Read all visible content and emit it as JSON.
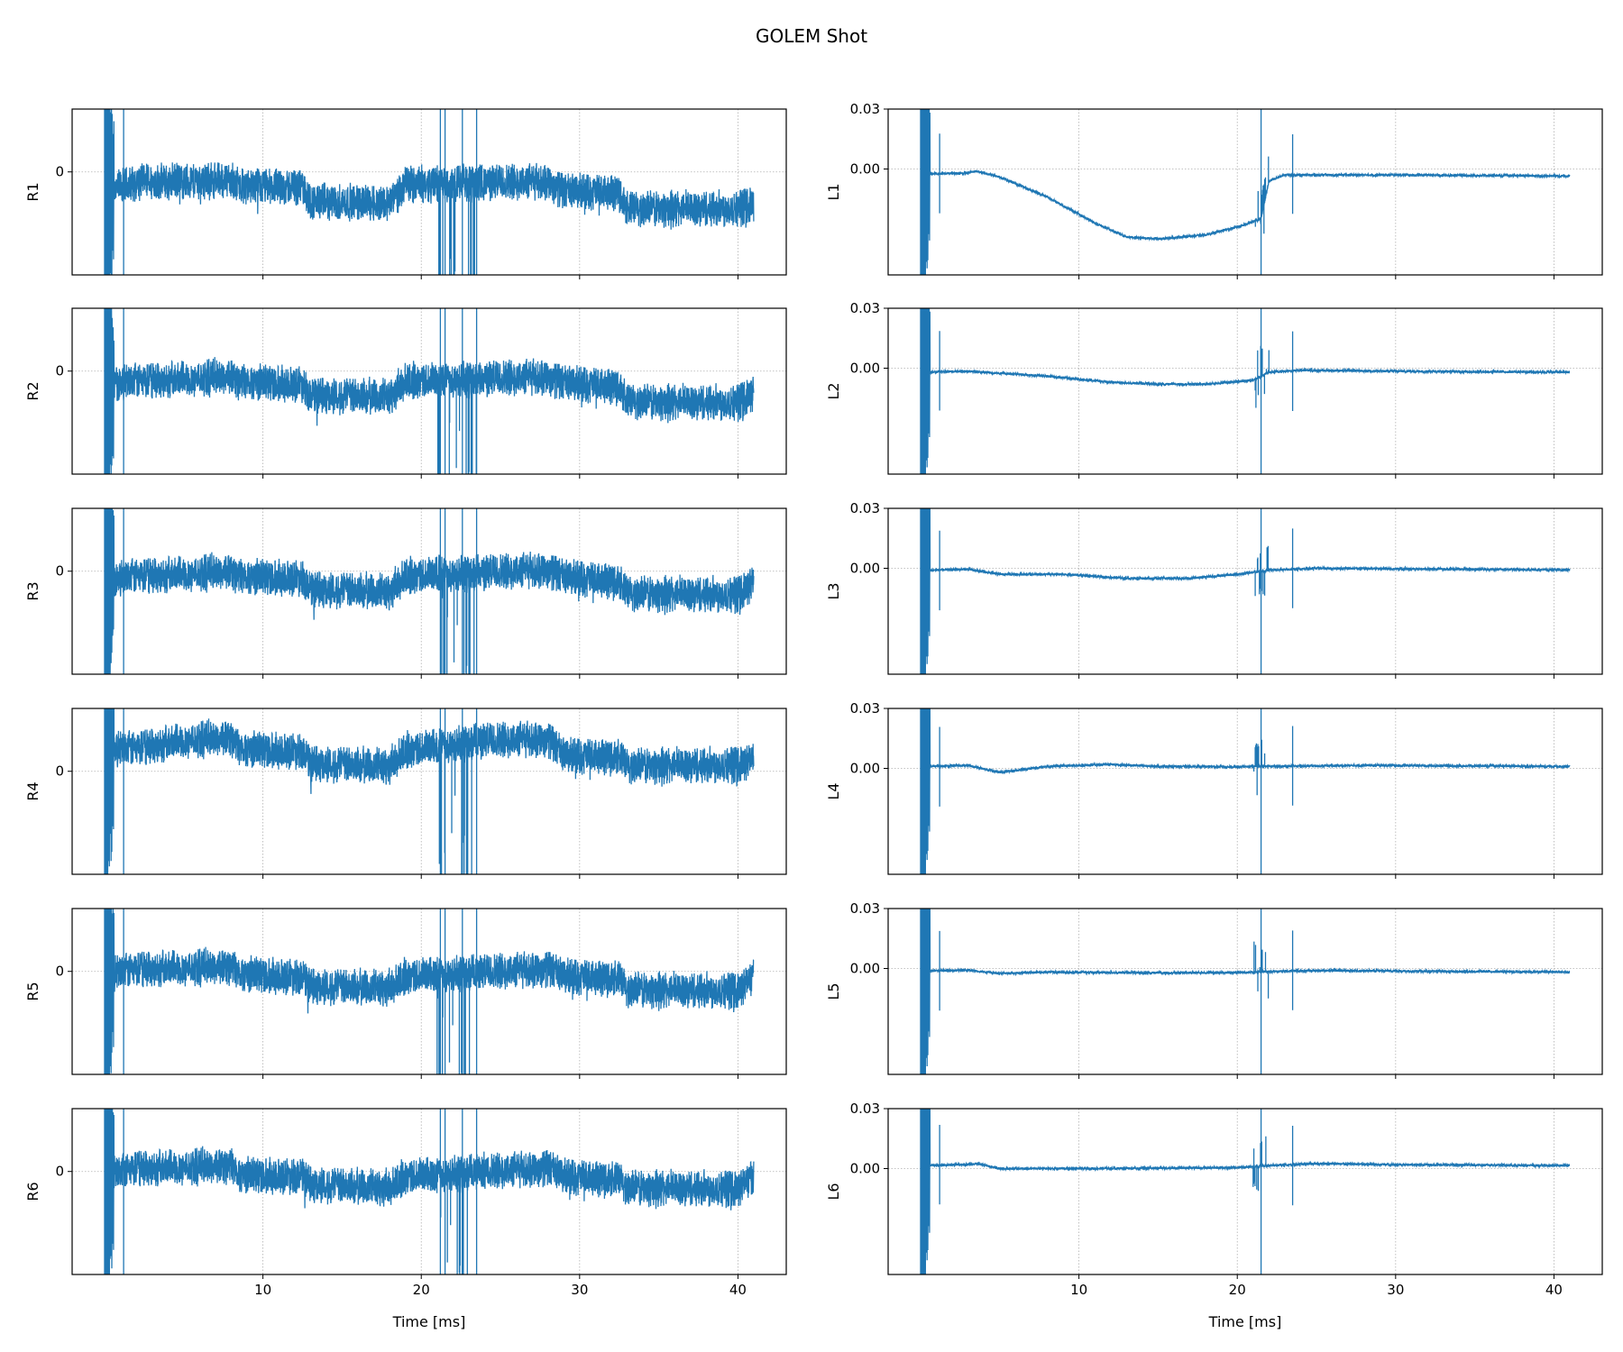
{
  "chart_data": {
    "type": "line",
    "title": "GOLEM Shot",
    "xlabel": "Time [ms]",
    "xlim": [
      -2.05,
      43.05
    ],
    "xticks": [
      10,
      20,
      30,
      40
    ],
    "grid": true,
    "line_color": "#1f77b4",
    "left_column": {
      "ylim": [
        -1.0,
        0.61
      ],
      "yticks": [
        {
          "value": 0,
          "label": "0"
        }
      ],
      "noise": 0.2,
      "spikes": [
        0.0,
        1.2,
        21.2,
        21.5,
        22.6,
        23.5
      ],
      "series": [
        {
          "name": "R1",
          "trend": [
            [
              0,
              -0.2
            ],
            [
              2,
              -0.1
            ],
            [
              8,
              -0.08
            ],
            [
              8.5,
              -0.14
            ],
            [
              12.5,
              -0.15
            ],
            [
              13,
              -0.29
            ],
            [
              18,
              -0.3
            ],
            [
              19,
              -0.12
            ],
            [
              28,
              -0.09
            ],
            [
              29,
              -0.19
            ],
            [
              32.5,
              -0.2
            ],
            [
              33,
              -0.36
            ],
            [
              40,
              -0.35
            ],
            [
              41,
              -0.3
            ]
          ]
        },
        {
          "name": "R2",
          "trend": [
            [
              0,
              -0.15
            ],
            [
              2,
              -0.1
            ],
            [
              8,
              -0.05
            ],
            [
              8.5,
              -0.1
            ],
            [
              12.5,
              -0.12
            ],
            [
              13,
              -0.24
            ],
            [
              18,
              -0.25
            ],
            [
              19,
              -0.1
            ],
            [
              28,
              -0.05
            ],
            [
              29,
              -0.12
            ],
            [
              32.5,
              -0.15
            ],
            [
              33,
              -0.3
            ],
            [
              40,
              -0.3
            ],
            [
              41,
              -0.2
            ]
          ]
        },
        {
          "name": "R3",
          "trend": [
            [
              0,
              -0.1
            ],
            [
              2,
              -0.05
            ],
            [
              8,
              0.0
            ],
            [
              8.5,
              -0.05
            ],
            [
              12.5,
              -0.06
            ],
            [
              13,
              -0.18
            ],
            [
              18,
              -0.2
            ],
            [
              19,
              -0.05
            ],
            [
              28,
              0.02
            ],
            [
              29,
              -0.06
            ],
            [
              32.5,
              -0.1
            ],
            [
              33,
              -0.22
            ],
            [
              40,
              -0.22
            ],
            [
              41,
              -0.1
            ]
          ]
        },
        {
          "name": "R4",
          "trend": [
            [
              0,
              0.2
            ],
            [
              2,
              0.22
            ],
            [
              5,
              0.3
            ],
            [
              8,
              0.33
            ],
            [
              8.5,
              0.22
            ],
            [
              12.5,
              0.2
            ],
            [
              13,
              0.07
            ],
            [
              18,
              0.05
            ],
            [
              19,
              0.2
            ],
            [
              24,
              0.3
            ],
            [
              28,
              0.32
            ],
            [
              29,
              0.15
            ],
            [
              32.5,
              0.14
            ],
            [
              33,
              0.05
            ],
            [
              40,
              0.07
            ],
            [
              41,
              0.12
            ]
          ]
        },
        {
          "name": "R5",
          "trend": [
            [
              0,
              -0.05
            ],
            [
              2,
              0.02
            ],
            [
              8,
              0.05
            ],
            [
              8.5,
              -0.02
            ],
            [
              12.5,
              -0.05
            ],
            [
              13,
              -0.15
            ],
            [
              18,
              -0.16
            ],
            [
              19,
              -0.05
            ],
            [
              28,
              0.03
            ],
            [
              29,
              -0.05
            ],
            [
              32.5,
              -0.07
            ],
            [
              33,
              -0.18
            ],
            [
              40,
              -0.18
            ],
            [
              41,
              -0.05
            ]
          ]
        },
        {
          "name": "R6",
          "trend": [
            [
              0,
              -0.05
            ],
            [
              2,
              0.03
            ],
            [
              8,
              0.06
            ],
            [
              8.5,
              -0.03
            ],
            [
              12.5,
              -0.04
            ],
            [
              13,
              -0.13
            ],
            [
              18,
              -0.16
            ],
            [
              19,
              -0.05
            ],
            [
              28,
              0.04
            ],
            [
              29,
              -0.05
            ],
            [
              32.5,
              -0.08
            ],
            [
              33,
              -0.16
            ],
            [
              40,
              -0.16
            ],
            [
              41,
              -0.05
            ]
          ]
        }
      ]
    },
    "right_column": {
      "ylim": [
        -0.053,
        0.03
      ],
      "yticks": [
        {
          "value": 0.03,
          "label": "0.03"
        },
        {
          "value": 0.0,
          "label": "0.00"
        }
      ],
      "noise": 0.0006,
      "spikes": [
        0.0,
        1.2,
        21.5,
        23.5
      ],
      "series": [
        {
          "name": "L1",
          "trend": [
            [
              0.3,
              -0.0025
            ],
            [
              3,
              -0.002
            ],
            [
              3.5,
              -0.001
            ],
            [
              5,
              -0.004
            ],
            [
              8,
              -0.014
            ],
            [
              11,
              -0.027
            ],
            [
              13,
              -0.034
            ],
            [
              15,
              -0.035
            ],
            [
              18,
              -0.033
            ],
            [
              20,
              -0.029
            ],
            [
              21.5,
              -0.025
            ],
            [
              22,
              -0.006
            ],
            [
              23,
              -0.003
            ],
            [
              30,
              -0.003
            ],
            [
              41,
              -0.0035
            ]
          ]
        },
        {
          "name": "L2",
          "trend": [
            [
              0.3,
              -0.002
            ],
            [
              3,
              -0.0015
            ],
            [
              5,
              -0.0025
            ],
            [
              8,
              -0.004
            ],
            [
              12,
              -0.007
            ],
            [
              15,
              -0.008
            ],
            [
              18,
              -0.008
            ],
            [
              21,
              -0.006
            ],
            [
              22,
              -0.002
            ],
            [
              24,
              -0.001
            ],
            [
              30,
              -0.0015
            ],
            [
              41,
              -0.002
            ]
          ]
        },
        {
          "name": "L3",
          "trend": [
            [
              0.3,
              -0.001
            ],
            [
              3,
              -0.0005
            ],
            [
              5,
              -0.003
            ],
            [
              9,
              -0.003
            ],
            [
              13,
              -0.005
            ],
            [
              17,
              -0.005
            ],
            [
              20,
              -0.003
            ],
            [
              22,
              -0.001
            ],
            [
              25,
              0.0
            ],
            [
              41,
              -0.0008
            ]
          ]
        },
        {
          "name": "L4",
          "trend": [
            [
              0.3,
              0.001
            ],
            [
              3,
              0.0015
            ],
            [
              5,
              -0.002
            ],
            [
              8,
              0.001
            ],
            [
              12,
              0.002
            ],
            [
              15,
              0.001
            ],
            [
              20,
              0.0008
            ],
            [
              22,
              0.001
            ],
            [
              28,
              0.0015
            ],
            [
              41,
              0.001
            ]
          ]
        },
        {
          "name": "L5",
          "trend": [
            [
              0.3,
              -0.0012
            ],
            [
              3,
              -0.0008
            ],
            [
              5,
              -0.0025
            ],
            [
              8,
              -0.0018
            ],
            [
              15,
              -0.0022
            ],
            [
              20,
              -0.002
            ],
            [
              22,
              -0.0015
            ],
            [
              25,
              -0.001
            ],
            [
              41,
              -0.0018
            ]
          ]
        },
        {
          "name": "L6",
          "trend": [
            [
              0.3,
              0.0015
            ],
            [
              3,
              0.002
            ],
            [
              3.5,
              0.0025
            ],
            [
              5,
              0.0
            ],
            [
              10,
              0.0
            ],
            [
              20,
              0.0005
            ],
            [
              22,
              0.0015
            ],
            [
              25,
              0.0025
            ],
            [
              30,
              0.002
            ],
            [
              41,
              0.0015
            ]
          ]
        }
      ]
    }
  }
}
